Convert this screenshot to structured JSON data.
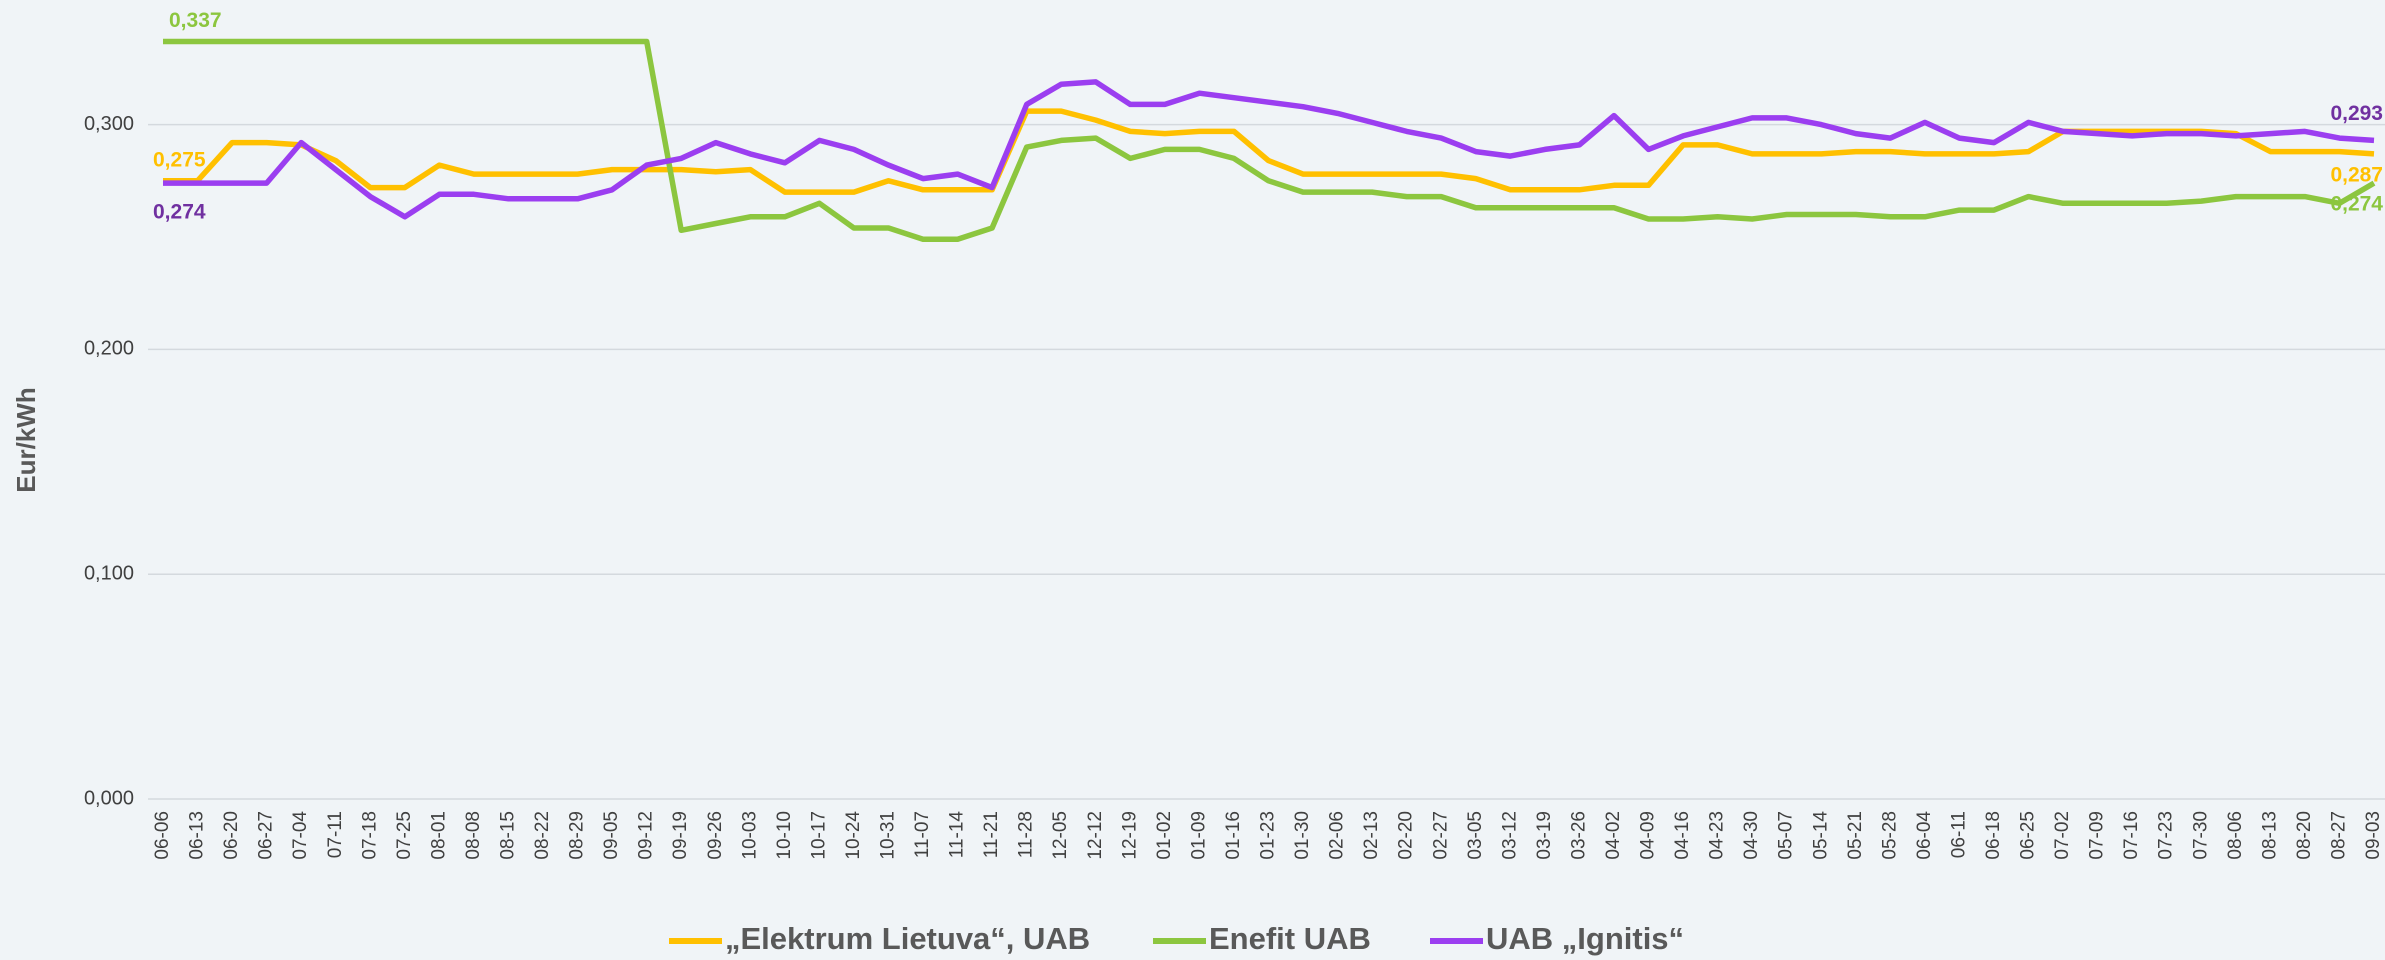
{
  "chart_data": {
    "type": "line",
    "y_label": "Eur/kWh",
    "categories": [
      "06-06",
      "06-13",
      "06-20",
      "06-27",
      "07-04",
      "07-11",
      "07-18",
      "07-25",
      "08-01",
      "08-08",
      "08-15",
      "08-22",
      "08-29",
      "09-05",
      "09-12",
      "09-19",
      "09-26",
      "10-03",
      "10-10",
      "10-17",
      "10-24",
      "10-31",
      "11-07",
      "11-14",
      "11-21",
      "11-28",
      "12-05",
      "12-12",
      "12-19",
      "01-02",
      "01-09",
      "01-16",
      "01-23",
      "01-30",
      "02-06",
      "02-13",
      "02-20",
      "02-27",
      "03-05",
      "03-12",
      "03-19",
      "03-26",
      "04-02",
      "04-09",
      "04-16",
      "04-23",
      "04-30",
      "05-07",
      "05-14",
      "05-21",
      "05-28",
      "06-04",
      "06-11",
      "06-18",
      "06-25",
      "07-02",
      "07-09",
      "07-16",
      "07-23",
      "07-30",
      "08-06",
      "08-13",
      "08-20",
      "08-27",
      "09-03"
    ],
    "series": [
      {
        "name": "„Elektrum Lietuva“, UAB",
        "color": "#ffc000",
        "label_color": "#ffc000",
        "values": [
          0.275,
          0.275,
          0.292,
          0.292,
          0.291,
          0.284,
          0.272,
          0.272,
          0.282,
          0.278,
          0.278,
          0.278,
          0.278,
          0.28,
          0.28,
          0.28,
          0.279,
          0.28,
          0.27,
          0.27,
          0.27,
          0.275,
          0.271,
          0.271,
          0.271,
          0.306,
          0.306,
          0.302,
          0.297,
          0.296,
          0.297,
          0.297,
          0.284,
          0.278,
          0.278,
          0.278,
          0.278,
          0.278,
          0.276,
          0.271,
          0.271,
          0.271,
          0.273,
          0.273,
          0.291,
          0.291,
          0.287,
          0.287,
          0.287,
          0.288,
          0.288,
          0.287,
          0.287,
          0.287,
          0.288,
          0.297,
          0.297,
          0.297,
          0.297,
          0.297,
          0.296,
          0.288,
          0.288,
          0.288,
          0.287
        ],
        "value_labels": [
          "0,275",
          null,
          null,
          null,
          null,
          null,
          null,
          null,
          null,
          null,
          null,
          null,
          null,
          null,
          null,
          null,
          null,
          null,
          null,
          null,
          null,
          null,
          null,
          null,
          null,
          null,
          null,
          null,
          null,
          null,
          null,
          null,
          null,
          null,
          null,
          null,
          null,
          null,
          null,
          null,
          null,
          null,
          null,
          null,
          null,
          null,
          null,
          null,
          null,
          null,
          null,
          null,
          null,
          null,
          null,
          null,
          null,
          null,
          null,
          null,
          null,
          null,
          null,
          null,
          "0,287"
        ]
      },
      {
        "name": "Enefit UAB",
        "color": "#8cc63f",
        "label_color": "#8cc63f",
        "values": [
          0.337,
          0.337,
          0.337,
          0.337,
          0.337,
          0.337,
          0.337,
          0.337,
          0.337,
          0.337,
          0.337,
          0.337,
          0.337,
          0.337,
          0.337,
          0.253,
          0.256,
          0.259,
          0.259,
          0.265,
          0.254,
          0.254,
          0.249,
          0.249,
          0.254,
          0.29,
          0.293,
          0.294,
          0.285,
          0.289,
          0.289,
          0.285,
          0.275,
          0.27,
          0.27,
          0.27,
          0.268,
          0.268,
          0.263,
          0.263,
          0.263,
          0.263,
          0.263,
          0.258,
          0.258,
          0.259,
          0.258,
          0.26,
          0.26,
          0.26,
          0.259,
          0.259,
          0.262,
          0.262,
          0.268,
          0.265,
          0.265,
          0.265,
          0.265,
          0.266,
          0.268,
          0.268,
          0.268,
          0.265,
          0.274
        ],
        "value_labels": [
          "0,337",
          null,
          null,
          null,
          null,
          null,
          null,
          null,
          null,
          null,
          null,
          null,
          null,
          null,
          null,
          null,
          null,
          null,
          null,
          null,
          null,
          null,
          null,
          null,
          null,
          null,
          null,
          null,
          null,
          null,
          null,
          null,
          null,
          null,
          null,
          null,
          null,
          null,
          null,
          null,
          null,
          null,
          null,
          null,
          null,
          null,
          null,
          null,
          null,
          null,
          null,
          null,
          null,
          null,
          null,
          null,
          null,
          null,
          null,
          null,
          null,
          null,
          null,
          null,
          "0,274"
        ]
      },
      {
        "name": "UAB „Ignitis“",
        "color": "#9b3ef0",
        "label_color": "#7030a0",
        "values": [
          0.274,
          0.274,
          0.274,
          0.274,
          0.292,
          0.28,
          0.268,
          0.259,
          0.269,
          0.269,
          0.267,
          0.267,
          0.267,
          0.271,
          0.282,
          0.285,
          0.292,
          0.287,
          0.283,
          0.293,
          0.289,
          0.282,
          0.276,
          0.278,
          0.272,
          0.309,
          0.318,
          0.319,
          0.309,
          0.309,
          0.314,
          0.312,
          0.31,
          0.308,
          0.305,
          0.301,
          0.297,
          0.294,
          0.288,
          0.286,
          0.289,
          0.291,
          0.304,
          0.289,
          0.295,
          0.299,
          0.303,
          0.303,
          0.3,
          0.296,
          0.294,
          0.301,
          0.294,
          0.292,
          0.301,
          0.297,
          0.296,
          0.295,
          0.296,
          0.296,
          0.295,
          0.296,
          0.297,
          0.294,
          0.293
        ],
        "value_labels": [
          "0,274",
          null,
          null,
          null,
          null,
          null,
          null,
          null,
          null,
          null,
          null,
          null,
          null,
          null,
          null,
          null,
          null,
          null,
          null,
          null,
          null,
          null,
          null,
          null,
          null,
          null,
          null,
          null,
          null,
          null,
          null,
          null,
          null,
          null,
          null,
          null,
          null,
          null,
          null,
          null,
          null,
          null,
          null,
          null,
          null,
          null,
          null,
          null,
          null,
          null,
          null,
          null,
          null,
          null,
          null,
          null,
          null,
          null,
          null,
          null,
          null,
          null,
          null,
          null,
          "0,293"
        ]
      }
    ],
    "ylim": [
      0,
      0.355
    ],
    "yticks": [
      {
        "value": 0,
        "label": "0,000"
      },
      {
        "value": 0.1,
        "label": "0,100"
      },
      {
        "value": 0.2,
        "label": "0,200"
      },
      {
        "value": 0.3,
        "label": "0,300"
      }
    ],
    "grid": true,
    "legend": "bottom"
  }
}
